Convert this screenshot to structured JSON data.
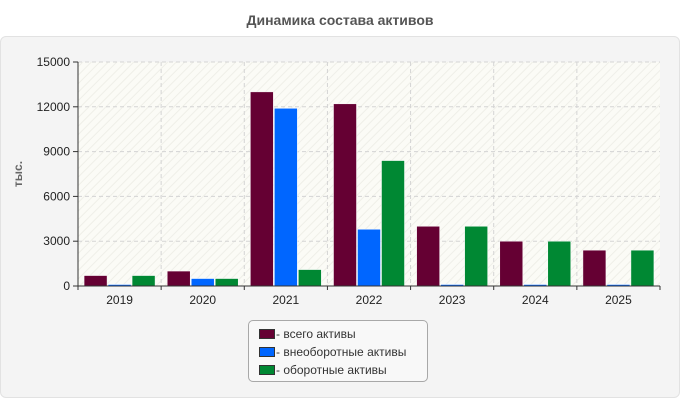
{
  "chart_data": {
    "type": "bar",
    "title": "Динамика состава активов",
    "ylabel": "тыс.",
    "xlabel": "",
    "categories": [
      "2019",
      "2020",
      "2021",
      "2022",
      "2023",
      "2024",
      "2025"
    ],
    "series": [
      {
        "name": "- всего активы",
        "color": "#650033",
        "values": [
          700,
          1000,
          13000,
          12200,
          4000,
          3000,
          2400
        ]
      },
      {
        "name": "- внеоборотные активы",
        "color": "#0066ff",
        "values": [
          50,
          500,
          11900,
          3800,
          50,
          50,
          50
        ]
      },
      {
        "name": "- оборотные активы",
        "color": "#008833",
        "values": [
          700,
          500,
          1100,
          8400,
          4000,
          3000,
          2400
        ]
      }
    ],
    "ylim": [
      0,
      15000
    ],
    "yticks": [
      0,
      3000,
      6000,
      9000,
      12000,
      15000
    ],
    "grid": true,
    "legend_position": "bottom"
  }
}
